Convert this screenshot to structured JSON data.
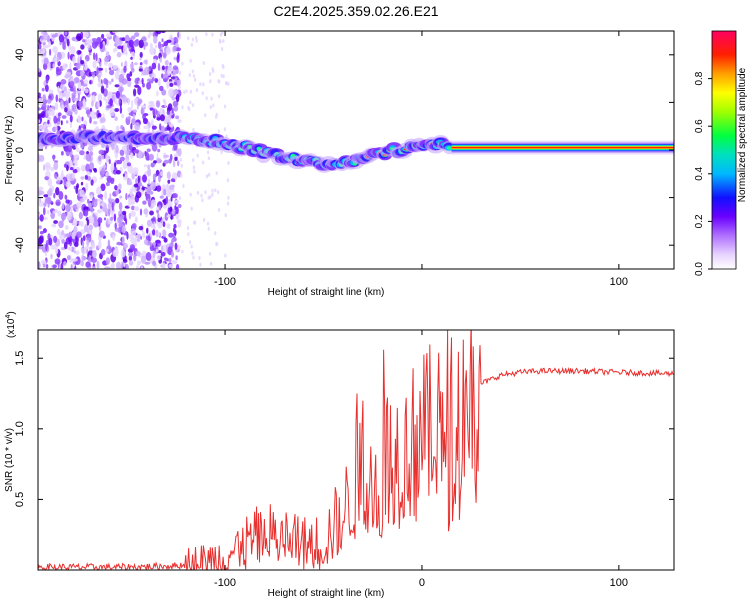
{
  "title": "C2E4.2025.359.02.26.E21",
  "chart_data": [
    {
      "type": "heatmap",
      "panel": "top",
      "xlabel": "Height of straight line (km)",
      "ylabel": "Frequency (Hz)",
      "xlim": [
        -195,
        128
      ],
      "ylim": [
        -50,
        50
      ],
      "xticks": [
        -100,
        0,
        100
      ],
      "xtick_labels": [
        "-100",
        "",
        "100"
      ],
      "yticks": [
        -40,
        -20,
        0,
        20,
        40
      ],
      "ytick_labels": [
        "-40",
        "-20",
        "0",
        "20",
        "40"
      ],
      "colorbar": {
        "label": "Normalized spectral amplitude",
        "range": [
          0,
          1
        ],
        "ticks": [
          0.0,
          0.2,
          0.4,
          0.6,
          0.8
        ],
        "tick_labels": [
          "0.0",
          "0.2",
          "0.4",
          "0.6",
          "0.8"
        ]
      },
      "noise_region_x": [
        -195,
        -123
      ],
      "signal_trace": {
        "x": [
          -195,
          -170,
          -150,
          -125,
          -110,
          -100,
          -90,
          -80,
          -70,
          -60,
          -50,
          -40,
          -30,
          -20,
          -10,
          0,
          10,
          15,
          128
        ],
        "freq": [
          5,
          5,
          5,
          5,
          4,
          3,
          1,
          -1,
          -3,
          -5,
          -6,
          -6,
          -3,
          -1,
          0,
          2,
          2,
          1,
          1
        ]
      }
    },
    {
      "type": "line",
      "panel": "bottom",
      "xlabel": "Height of straight line (km)",
      "ylabel": "SNR (10 * v/v)",
      "yscale_note": "(x10^4)",
      "xlim": [
        -195,
        128
      ],
      "ylim": [
        0,
        1.7
      ],
      "xticks": [
        -100,
        0,
        100
      ],
      "xtick_labels": [
        "-100",
        "0",
        "100"
      ],
      "yticks": [
        0.5,
        1.0,
        1.5
      ],
      "ytick_labels": [
        "0.5",
        "1.0",
        "1.5"
      ],
      "color": "#e8302e",
      "series": [
        {
          "name": "SNR",
          "x": [
            -195,
            -150,
            -125,
            -110,
            -100,
            -90,
            -80,
            -70,
            -60,
            -50,
            -45,
            -40,
            -35,
            -30,
            -25,
            -22,
            -20,
            -18,
            -15,
            -10,
            -5,
            0,
            5,
            10,
            13,
            15,
            20,
            25,
            30,
            40,
            50,
            60,
            80,
            100,
            128
          ],
          "y": [
            0.02,
            0.02,
            0.03,
            0.05,
            0.1,
            0.18,
            0.25,
            0.22,
            0.18,
            0.2,
            0.3,
            0.4,
            0.55,
            0.8,
            0.7,
            0.5,
            0.75,
            0.8,
            0.85,
            0.8,
            0.9,
            0.95,
            1.0,
            1.05,
            0.55,
            1.05,
            1.15,
            1.25,
            1.32,
            1.38,
            1.4,
            1.41,
            1.41,
            1.4,
            1.39
          ]
        }
      ],
      "spikes": [
        {
          "x": -33,
          "y": 1.25
        },
        {
          "x": -19.5,
          "y": 1.56
        },
        {
          "x": 13,
          "y": 1.7
        }
      ]
    }
  ],
  "superscript": "4"
}
